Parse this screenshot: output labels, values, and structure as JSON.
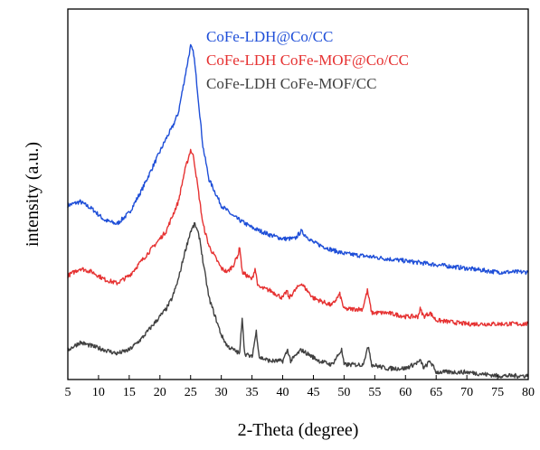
{
  "chart_data": {
    "type": "line",
    "title": "",
    "xlabel": "2-Theta (degree)",
    "ylabel": "intensity (a.u.)",
    "xlim": [
      5,
      80
    ],
    "ylim": [
      0,
      1
    ],
    "x_ticks": [
      "5",
      "10",
      "15",
      "20",
      "25",
      "30",
      "35",
      "40",
      "45",
      "50",
      "55",
      "60",
      "65",
      "70",
      "75",
      "80"
    ],
    "y_ticks_shown": false,
    "grid": false,
    "legend_position": "top-right",
    "series": [
      {
        "name": "CoFe-LDH@Co/CC",
        "color": "#1f4fd8",
        "points": [
          [
            5,
            0.47
          ],
          [
            7,
            0.48
          ],
          [
            9,
            0.46
          ],
          [
            11,
            0.43
          ],
          [
            13,
            0.42
          ],
          [
            15,
            0.45
          ],
          [
            17,
            0.51
          ],
          [
            19,
            0.58
          ],
          [
            21,
            0.65
          ],
          [
            22,
            0.68
          ],
          [
            23,
            0.72
          ],
          [
            24,
            0.81
          ],
          [
            25,
            0.9
          ],
          [
            25.5,
            0.88
          ],
          [
            26,
            0.8
          ],
          [
            27,
            0.63
          ],
          [
            28,
            0.54
          ],
          [
            30,
            0.47
          ],
          [
            32,
            0.44
          ],
          [
            35,
            0.41
          ],
          [
            38,
            0.39
          ],
          [
            40,
            0.38
          ],
          [
            42,
            0.38
          ],
          [
            43,
            0.4
          ],
          [
            45,
            0.37
          ],
          [
            48,
            0.35
          ],
          [
            50,
            0.34
          ],
          [
            55,
            0.33
          ],
          [
            60,
            0.32
          ],
          [
            65,
            0.31
          ],
          [
            70,
            0.3
          ],
          [
            75,
            0.29
          ],
          [
            80,
            0.29
          ]
        ]
      },
      {
        "name": "CoFe-LDH CoFe-MOF@Co/CC",
        "color": "#e63232",
        "points": [
          [
            5,
            0.28
          ],
          [
            7,
            0.3
          ],
          [
            9,
            0.29
          ],
          [
            11,
            0.27
          ],
          [
            13,
            0.26
          ],
          [
            15,
            0.28
          ],
          [
            17,
            0.32
          ],
          [
            19,
            0.36
          ],
          [
            21,
            0.4
          ],
          [
            22,
            0.44
          ],
          [
            23,
            0.48
          ],
          [
            24,
            0.56
          ],
          [
            25,
            0.62
          ],
          [
            25.5,
            0.6
          ],
          [
            26,
            0.54
          ],
          [
            27,
            0.42
          ],
          [
            28,
            0.36
          ],
          [
            30,
            0.3
          ],
          [
            31,
            0.29
          ],
          [
            32,
            0.31
          ],
          [
            32.8,
            0.34
          ],
          [
            33,
            0.36
          ],
          [
            33.4,
            0.29
          ],
          [
            35,
            0.27
          ],
          [
            35.5,
            0.3
          ],
          [
            36,
            0.25
          ],
          [
            38,
            0.24
          ],
          [
            40,
            0.22
          ],
          [
            40.7,
            0.24
          ],
          [
            41,
            0.22
          ],
          [
            43,
            0.26
          ],
          [
            45,
            0.22
          ],
          [
            48,
            0.2
          ],
          [
            49.3,
            0.23
          ],
          [
            50,
            0.19
          ],
          [
            53,
            0.19
          ],
          [
            53.8,
            0.24
          ],
          [
            54.5,
            0.18
          ],
          [
            57,
            0.18
          ],
          [
            60,
            0.17
          ],
          [
            62,
            0.17
          ],
          [
            62.4,
            0.19
          ],
          [
            63,
            0.17
          ],
          [
            64,
            0.18
          ],
          [
            65,
            0.16
          ],
          [
            70,
            0.15
          ],
          [
            75,
            0.15
          ],
          [
            80,
            0.15
          ]
        ]
      },
      {
        "name": "CoFe-LDH CoFe-MOF/CC",
        "color": "#404040",
        "points": [
          [
            5,
            0.08
          ],
          [
            7,
            0.1
          ],
          [
            9,
            0.09
          ],
          [
            11,
            0.08
          ],
          [
            13,
            0.07
          ],
          [
            15,
            0.08
          ],
          [
            17,
            0.11
          ],
          [
            19,
            0.15
          ],
          [
            21,
            0.19
          ],
          [
            22,
            0.22
          ],
          [
            23,
            0.27
          ],
          [
            24,
            0.34
          ],
          [
            25,
            0.4
          ],
          [
            25.7,
            0.42
          ],
          [
            26.5,
            0.38
          ],
          [
            27,
            0.32
          ],
          [
            28,
            0.22
          ],
          [
            30,
            0.12
          ],
          [
            31,
            0.09
          ],
          [
            32,
            0.08
          ],
          [
            33,
            0.07
          ],
          [
            33.4,
            0.17
          ],
          [
            33.8,
            0.07
          ],
          [
            35,
            0.06
          ],
          [
            35.7,
            0.13
          ],
          [
            36.2,
            0.06
          ],
          [
            38,
            0.05
          ],
          [
            40,
            0.05
          ],
          [
            40.8,
            0.08
          ],
          [
            41.3,
            0.05
          ],
          [
            43,
            0.08
          ],
          [
            44,
            0.07
          ],
          [
            46,
            0.05
          ],
          [
            48,
            0.04
          ],
          [
            49.6,
            0.08
          ],
          [
            50,
            0.04
          ],
          [
            53,
            0.04
          ],
          [
            54,
            0.09
          ],
          [
            54.5,
            0.04
          ],
          [
            57,
            0.03
          ],
          [
            60,
            0.03
          ],
          [
            62.5,
            0.05
          ],
          [
            63,
            0.03
          ],
          [
            64,
            0.05
          ],
          [
            65,
            0.02
          ],
          [
            70,
            0.02
          ],
          [
            75,
            0.01
          ],
          [
            80,
            0.01
          ]
        ]
      }
    ]
  }
}
